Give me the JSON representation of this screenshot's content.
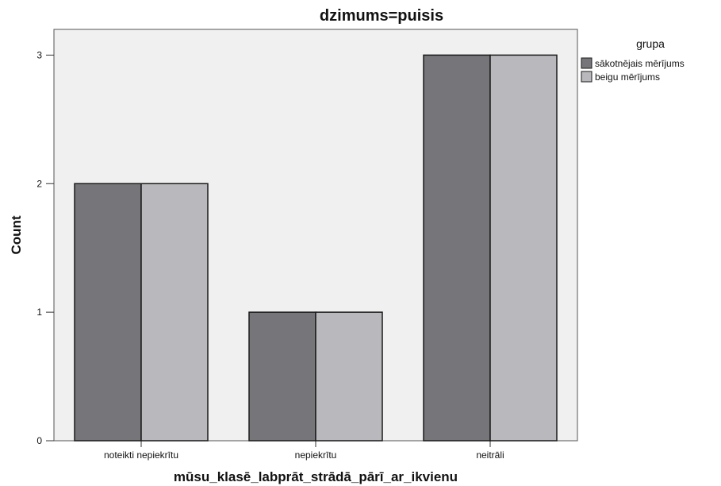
{
  "chart_data": {
    "type": "bar",
    "title": "dzimums=puisis",
    "xlabel": "mūsu_klasē_labprāt_strādā_pārī_ar_ikvienu",
    "ylabel": "Count",
    "categories": [
      "noteikti nepiekrītu",
      "nepiekrītu",
      "neitrāli"
    ],
    "series": [
      {
        "name": "sākotnējais mērījums",
        "values": [
          2,
          1,
          3
        ],
        "color": "#76767a"
      },
      {
        "name": "beigu mērījums",
        "values": [
          2,
          1,
          3
        ],
        "color": "#b9b9bd"
      }
    ],
    "ylim": [
      0,
      3.2
    ],
    "yticks": [
      0,
      1,
      2,
      3
    ],
    "legend": {
      "title": "grupa",
      "position": "right"
    },
    "plot_background": "#f0f0f0",
    "grid": false
  }
}
